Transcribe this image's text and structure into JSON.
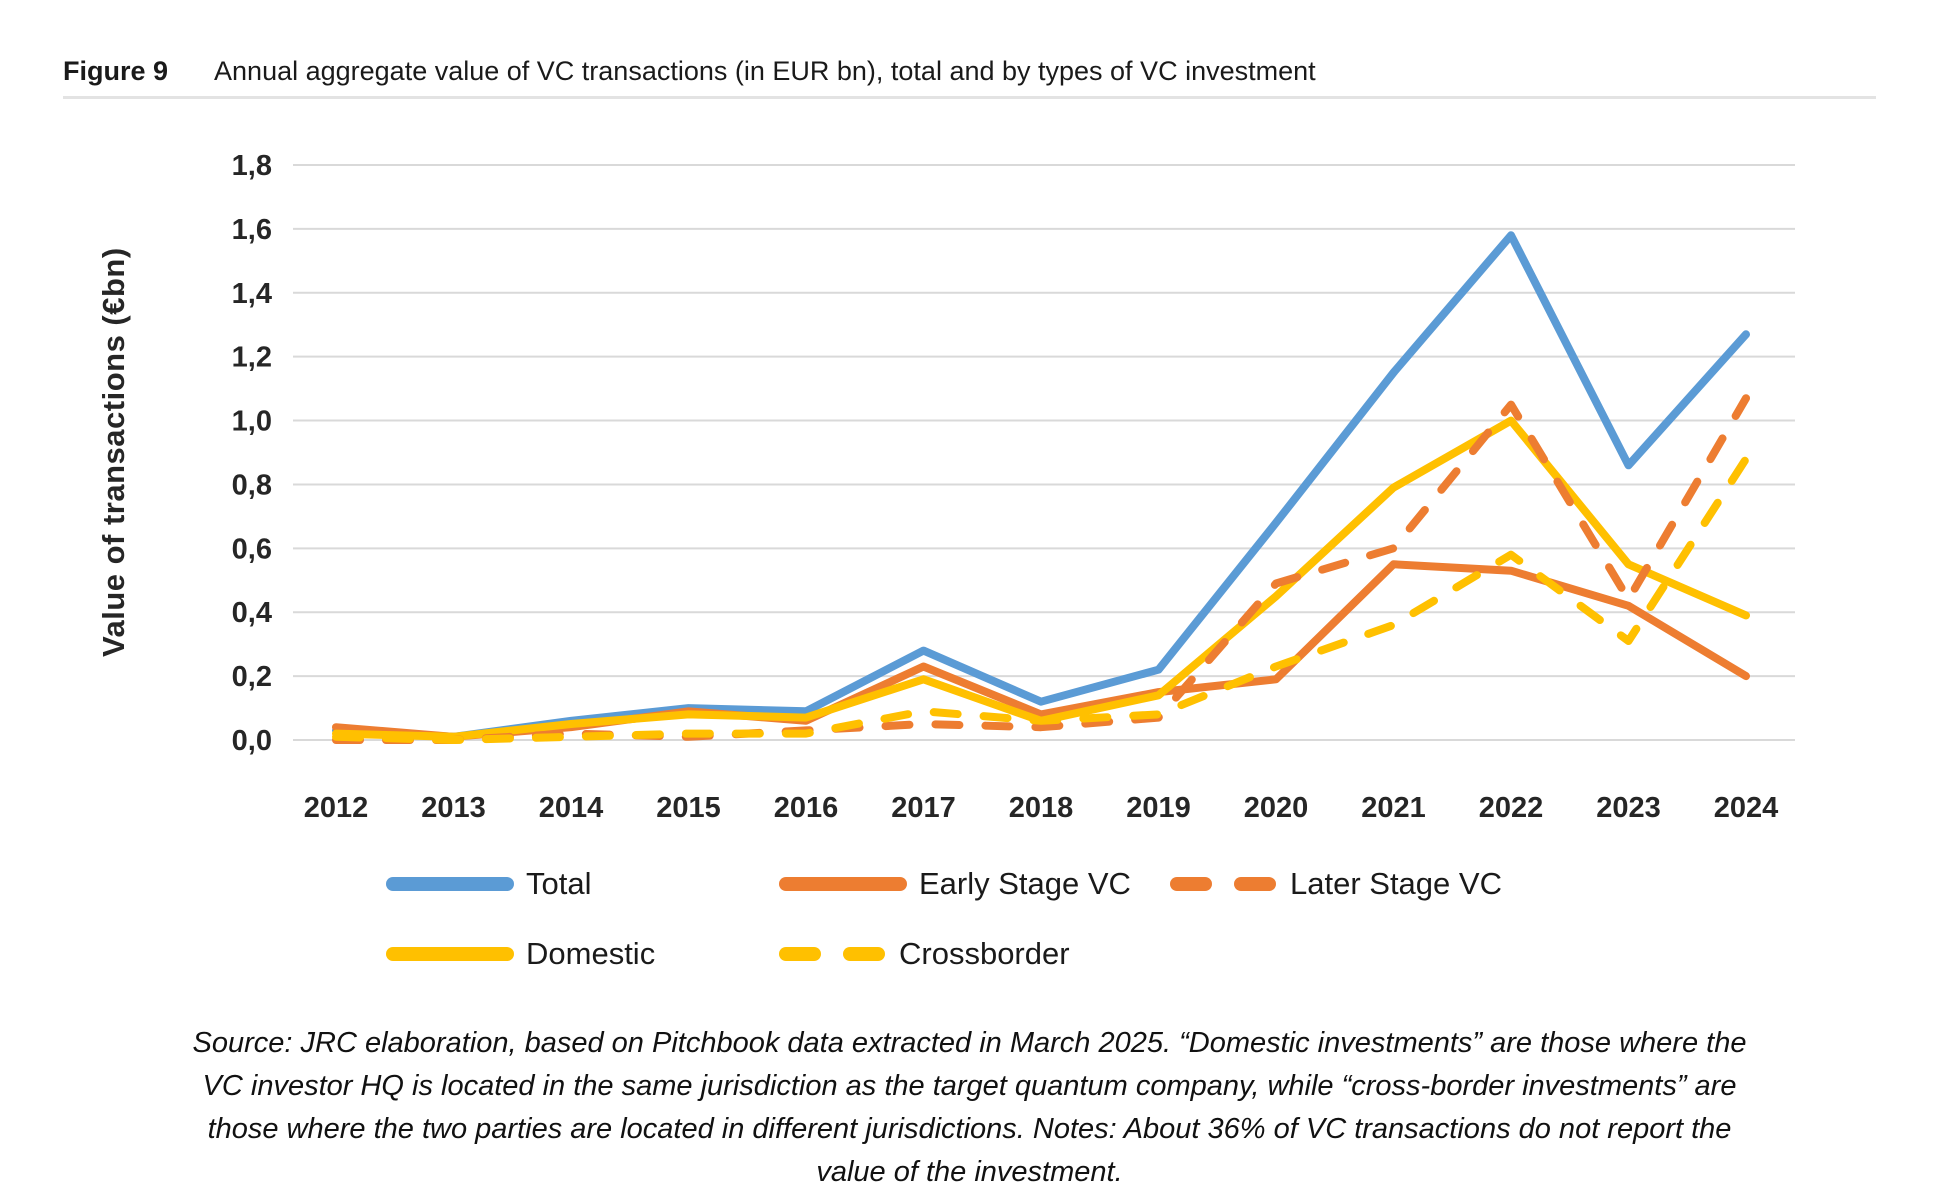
{
  "header": {
    "figure_label": "Figure 9",
    "title": "Annual aggregate value of VC transactions (in EUR bn), total and by types of VC investment"
  },
  "chart_data": {
    "type": "line",
    "title": "Annual aggregate value of VC transactions (in EUR bn), total and by types of VC investment",
    "xlabel": "",
    "ylabel": "Value of transactions (€bn)",
    "ylim": [
      0,
      1.8
    ],
    "ytick_step": 0.2,
    "ytick_labels": [
      "0,0",
      "0,2",
      "0,4",
      "0,6",
      "0,8",
      "1,0",
      "1,2",
      "1,4",
      "1,6",
      "1,8"
    ],
    "categories": [
      "2012",
      "2013",
      "2014",
      "2015",
      "2016",
      "2017",
      "2018",
      "2019",
      "2020",
      "2021",
      "2022",
      "2023",
      "2024"
    ],
    "grid": "horizontal",
    "gridline_color": "#d9d9d9",
    "legend_position": "bottom",
    "series": [
      {
        "name": "Total",
        "color": "#5B9BD5",
        "dash": false,
        "values": [
          0.03,
          0.01,
          0.06,
          0.1,
          0.09,
          0.28,
          0.12,
          0.22,
          0.68,
          1.15,
          1.58,
          0.86,
          1.27
        ]
      },
      {
        "name": "Early Stage VC",
        "color": "#ED7D31",
        "dash": false,
        "values": [
          0.04,
          0.01,
          0.04,
          0.09,
          0.06,
          0.23,
          0.08,
          0.15,
          0.19,
          0.55,
          0.53,
          0.42,
          0.2
        ]
      },
      {
        "name": "Later Stage VC",
        "color": "#ED7D31",
        "dash": true,
        "values": [
          0.0,
          0.0,
          0.02,
          0.01,
          0.03,
          0.05,
          0.04,
          0.07,
          0.49,
          0.6,
          1.05,
          0.44,
          1.07
        ]
      },
      {
        "name": "Domestic",
        "color": "#FFC000",
        "dash": false,
        "values": [
          0.02,
          0.01,
          0.05,
          0.08,
          0.07,
          0.19,
          0.06,
          0.14,
          0.45,
          0.79,
          1.0,
          0.55,
          0.39
        ]
      },
      {
        "name": "Crossborder",
        "color": "#FFC000",
        "dash": true,
        "values": [
          0.01,
          0.0,
          0.01,
          0.02,
          0.02,
          0.09,
          0.06,
          0.08,
          0.23,
          0.36,
          0.58,
          0.31,
          0.88
        ]
      }
    ]
  },
  "footer": {
    "source_note": "Source: JRC elaboration, based on Pitchbook data extracted in March 2025. “Domestic investments” are those where the VC investor HQ is located in the same jurisdiction as the target quantum company, while “cross-border investments” are those where the two parties are located in different jurisdictions. Notes: About 36% of VC transactions do not report the value of the investment."
  }
}
